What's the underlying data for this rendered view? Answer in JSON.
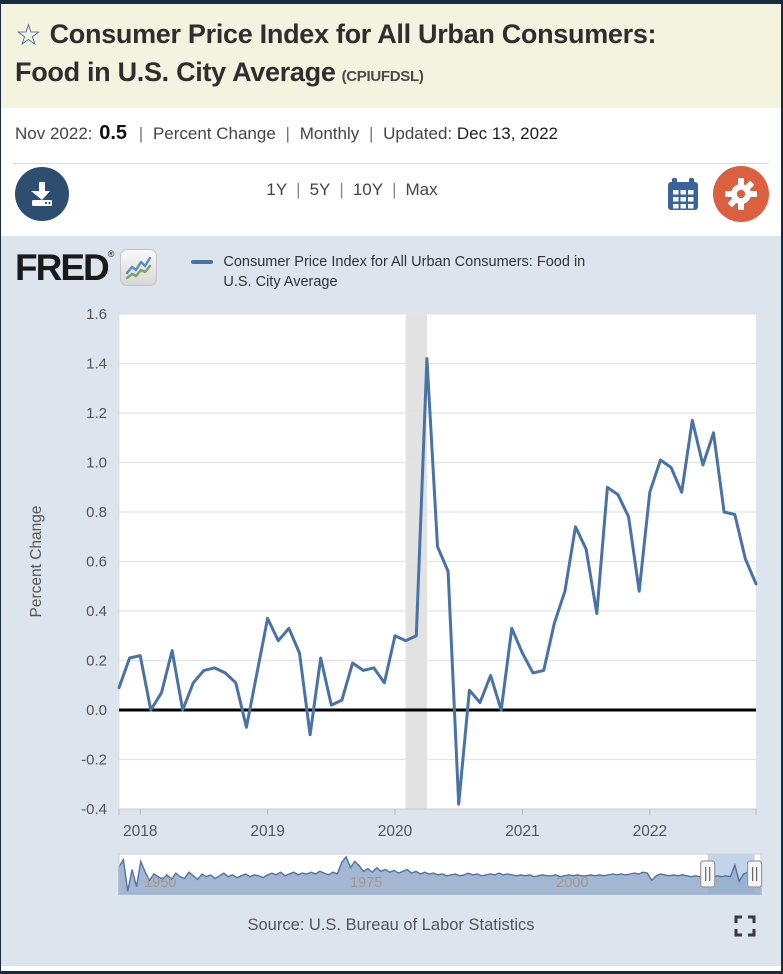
{
  "colors": {
    "accent_navy": "#2d4d71",
    "star_blue": "#3c62a0",
    "calendar_blue": "#38639c",
    "gear_orange": "#dc6040",
    "series_line": "#4872a8",
    "navigator_fill": "#93aacb",
    "navigator_line": "#4e74a4",
    "recession_band": "#e2e2e2"
  },
  "masthead": {
    "title_line1": "Consumer Price Index for All Urban Consumers:",
    "title_line2": "Food in U.S. City Average",
    "series_id": "(CPIUFDSL)"
  },
  "meta": {
    "obs_date": "Nov 2022:",
    "obs_value": "0.5",
    "sep": "|",
    "units": "Percent Change",
    "frequency": "Monthly",
    "updated_label": "Updated:",
    "updated_date": "Dec 13, 2022"
  },
  "toolbar": {
    "sep": "|",
    "ranges": [
      "1Y",
      "5Y",
      "10Y",
      "Max"
    ],
    "download_icon": "download-icon",
    "calendar_icon": "calendar-icon",
    "gear_icon": "gear-icon"
  },
  "brand": {
    "logo_text": "FRED",
    "registered": "®",
    "legend_line1": "Consumer Price Index for All Urban Consumers: Food in",
    "legend_line2": "U.S. City Average"
  },
  "chart_data": {
    "type": "line",
    "title": "Consumer Price Index for All Urban Consumers: Food in U.S. City Average",
    "ylabel": "Percent Change",
    "ylim": [
      -0.4,
      1.6
    ],
    "y_tick_step": 0.2,
    "x_tick_years": [
      2018,
      2019,
      2020,
      2021,
      2022
    ],
    "start_month": "2017-11",
    "end_month": "2022-11",
    "frequency": "Monthly",
    "grid": true,
    "zero_line": true,
    "line_color": "#4872a8",
    "recession_band": {
      "start": "2020-02",
      "end": "2020-04"
    },
    "series": [
      {
        "name": "Consumer Price Index for All Urban Consumers: Food in U.S. City Average",
        "values": [
          0.09,
          0.21,
          0.22,
          0.0,
          0.07,
          0.24,
          0.0,
          0.11,
          0.16,
          0.17,
          0.15,
          0.11,
          -0.07,
          0.15,
          0.37,
          0.28,
          0.33,
          0.23,
          -0.1,
          0.21,
          0.02,
          0.04,
          0.19,
          0.16,
          0.17,
          0.11,
          0.3,
          0.28,
          0.3,
          1.42,
          0.66,
          0.56,
          -0.38,
          0.08,
          0.03,
          0.14,
          0.0,
          0.33,
          0.23,
          0.15,
          0.16,
          0.35,
          0.48,
          0.74,
          0.65,
          0.39,
          0.9,
          0.87,
          0.78,
          0.48,
          0.88,
          1.01,
          0.98,
          0.88,
          1.17,
          0.99,
          1.12,
          0.8,
          0.79,
          0.61,
          0.51
        ]
      }
    ],
    "navigator": {
      "type": "area",
      "x_start_year": 1945,
      "x_end_year": 2022.9,
      "labels": [
        "1950",
        "1975",
        "2000"
      ],
      "label_years": [
        1950,
        1975,
        2000
      ],
      "selection": {
        "start_frac": 0.917,
        "end_frac": 0.99
      },
      "values": [
        1.2,
        2.0,
        -1.5,
        0.9,
        -1.0,
        1.8,
        0.6,
        -0.3,
        0.4,
        0.1,
        -0.2,
        0.3,
        -0.2,
        0.5,
        0.1,
        -0.1,
        0.6,
        0.2,
        -0.2,
        0.4,
        0.1,
        0.3,
        -0.1,
        0.2,
        0.5,
        0.1,
        0.3,
        0.0,
        0.2,
        0.4,
        0.1,
        0.3,
        0.2,
        0.0,
        0.3,
        0.5,
        0.3,
        0.6,
        0.2,
        0.4,
        0.6,
        0.3,
        0.5,
        0.4,
        0.6,
        0.4,
        0.7,
        0.5,
        0.3,
        0.6,
        0.4,
        1.7,
        2.3,
        1.1,
        1.8,
        1.3,
        0.7,
        1.0,
        0.6,
        1.1,
        0.7,
        0.9,
        0.6,
        0.8,
        0.5,
        0.7,
        0.9,
        0.5,
        0.7,
        0.4,
        0.6,
        0.4,
        0.5,
        0.3,
        0.4,
        0.2,
        0.3,
        0.4,
        0.2,
        0.3,
        0.5,
        0.3,
        0.4,
        0.2,
        0.3,
        0.4,
        0.3,
        0.5,
        0.3,
        0.4,
        0.3,
        0.2,
        0.3,
        0.2,
        0.3,
        0.1,
        0.2,
        0.3,
        0.2,
        0.2,
        0.3,
        0.1,
        0.2,
        0.3,
        0.2,
        0.3,
        0.2,
        0.2,
        0.3,
        0.2,
        0.3,
        0.2,
        0.3,
        0.4,
        0.3,
        0.4,
        0.3,
        0.4,
        0.5,
        0.4,
        0.6,
        0.5,
        -0.3,
        0.2,
        0.4,
        0.3,
        0.2,
        0.3,
        0.2,
        0.3,
        0.2,
        0.1,
        0.2,
        0.1,
        0.0,
        0.2,
        0.1,
        0.2,
        0.1,
        0.2,
        0.1,
        1.4,
        -0.4,
        0.4,
        0.6,
        0.9,
        1.1,
        0.5
      ]
    }
  },
  "source": {
    "text": "Source: U.S. Bureau of Labor Statistics"
  }
}
